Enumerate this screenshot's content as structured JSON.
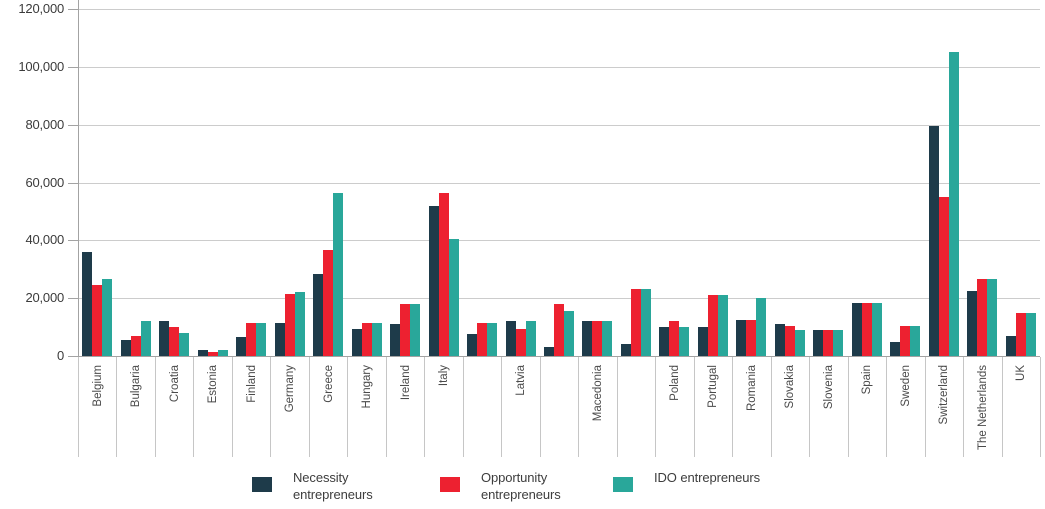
{
  "chart_data": {
    "type": "bar",
    "title": "",
    "xlabel": "",
    "ylabel": "",
    "categories": [
      "Belgium",
      "Bulgaria",
      "Croatia",
      "Estonia",
      "Finland",
      "Germany",
      "Greece",
      "Hungary",
      "Ireland",
      "Italy",
      "",
      "Latvia",
      "",
      "Macedonia",
      "",
      "Poland",
      "Portugal",
      "Romania",
      "Slovakia",
      "Slovenia",
      "Spain",
      "Sweden",
      "Switzerland",
      "The Netherlands",
      "UK"
    ],
    "series": [
      {
        "name": "Necessity entrepreneurs",
        "color": "#1e3b4a",
        "values": [
          36000,
          5500,
          12000,
          2000,
          6500,
          11500,
          28500,
          9500,
          11000,
          52000,
          7500,
          12000,
          3000,
          12000,
          4000,
          10000,
          10000,
          12500,
          11000,
          9000,
          18500,
          5000,
          79500,
          22500,
          7000
        ]
      },
      {
        "name": "Opportunity entrepreneurs",
        "color": "#ed2130",
        "values": [
          24500,
          7000,
          10000,
          1500,
          11500,
          21500,
          36500,
          11500,
          18000,
          56500,
          11500,
          9500,
          18000,
          12000,
          23000,
          12000,
          21000,
          12500,
          10500,
          9000,
          18500,
          10500,
          55000,
          26500,
          15000
        ]
      },
      {
        "name": "IDO entrepreneurs",
        "color": "#29a79a",
        "values": [
          26500,
          12000,
          8000,
          2000,
          11500,
          22000,
          56500,
          11500,
          18000,
          40500,
          11500,
          12000,
          15500,
          12000,
          23000,
          10000,
          21000,
          20000,
          9000,
          9000,
          18500,
          10500,
          105000,
          26500,
          15000
        ]
      }
    ],
    "ylim": [
      0,
      120000
    ],
    "yticks": [
      0,
      20000,
      40000,
      60000,
      80000,
      100000,
      120000
    ],
    "ytick_labels": [
      "0",
      "20,000",
      "40,000",
      "60,000",
      "80,000",
      "100,000",
      "120,000"
    ],
    "grid": true,
    "legend_position": "bottom"
  },
  "legend": {
    "items": [
      {
        "label": "Necessity\nentrepreneurs",
        "color": "#1e3b4a"
      },
      {
        "label": "Opportunity\nentrepreneurs",
        "color": "#ed2130"
      },
      {
        "label": "IDO entrepreneurs",
        "color": "#29a79a"
      }
    ]
  }
}
